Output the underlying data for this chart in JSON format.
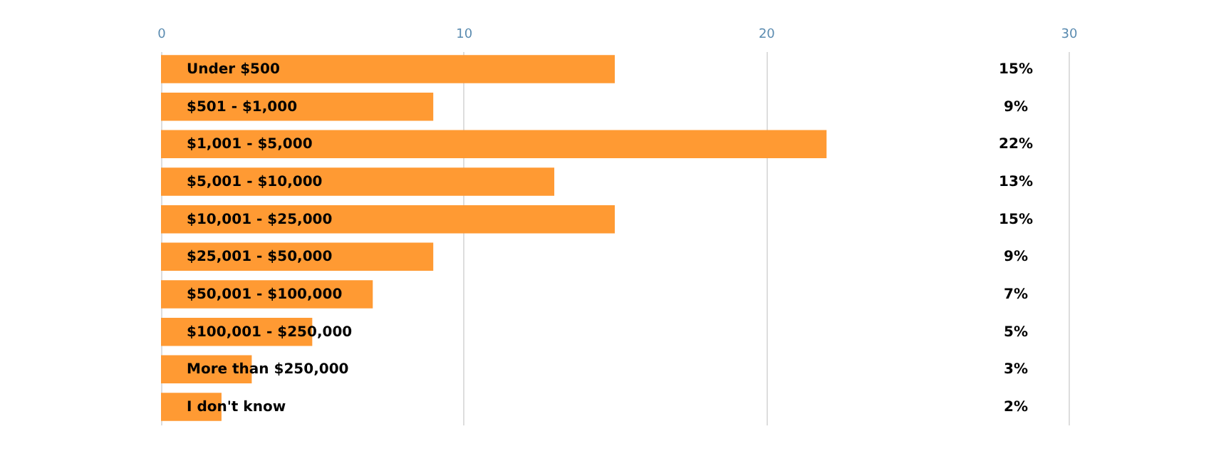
{
  "chart_data": {
    "type": "bar",
    "orientation": "horizontal",
    "categories": [
      "Under $500",
      "$501 - $1,000",
      "$1,001 - $5,000",
      "$5,001 - $10,000",
      "$10,001 - $25,000",
      "$25,001 - $50,000",
      "$50,001 - $100,000",
      "$100,001 - $250,000",
      "More than $250,000",
      "I don't know"
    ],
    "values": [
      15,
      9,
      22,
      13,
      15,
      9,
      7,
      5,
      3,
      2
    ],
    "value_labels": [
      "15%",
      "9%",
      "22%",
      "13%",
      "15%",
      "9%",
      "7%",
      "5%",
      "3%",
      "2%"
    ],
    "color": "#ff9a33",
    "xlim": [
      0,
      30
    ],
    "xticks": [
      0,
      10,
      20,
      30
    ],
    "grid": "x"
  }
}
